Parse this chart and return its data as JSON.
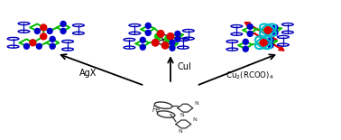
{
  "bg_color": "#ffffff",
  "green_chain": "#00bb00",
  "blue_dot": "#0000cc",
  "red_dot": "#dd0000",
  "blue_fc": "#0000bb",
  "cyan_ellipse": "#00bbcc",
  "red_arrow": "#dd0000",
  "fc_color": "#333333",
  "figsize": [
    3.78,
    1.55
  ],
  "dpi": 100,
  "label_AgX": "AgX",
  "label_CuI": "CuI",
  "label_Cu2": "Cu$_2$(RCOO)$_4$"
}
